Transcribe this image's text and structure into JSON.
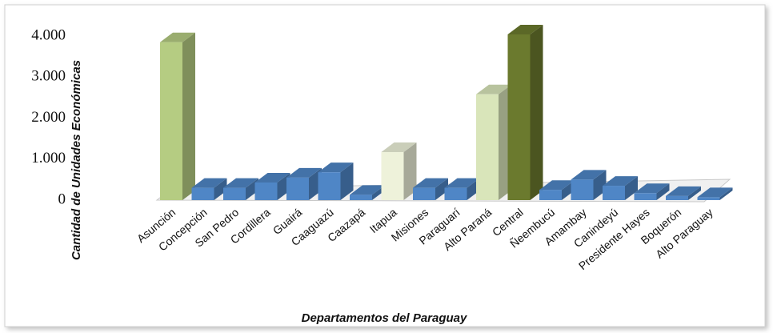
{
  "chart_data": {
    "type": "bar3d",
    "x_label": "Departamentos del Paraguay",
    "y_label": "Cantidad de Unidades Económicas",
    "categories": [
      "Asunción",
      "Concepción",
      "San Pedro",
      "Cordillera",
      "Guairá",
      "Caaguazú",
      "Caazapá",
      "Itapua",
      "Misiones",
      "Paraguarí",
      "Alto Paraná",
      "Central",
      "Ñeembucú",
      "Amambay",
      "Canindeyú",
      "Presidente Hayes",
      "Boquerón",
      "Alto Paraguay"
    ],
    "values": [
      3850,
      300,
      300,
      430,
      550,
      680,
      130,
      1170,
      300,
      300,
      2580,
      4040,
      250,
      500,
      350,
      170,
      100,
      70
    ],
    "colors": [
      "#b5cc82",
      "#4f86c6",
      "#4f86c6",
      "#4f86c6",
      "#4f86c6",
      "#4f86c6",
      "#4f86c6",
      "#eef2da",
      "#4f86c6",
      "#4f86c6",
      "#d9e5ba",
      "#6b7a2e",
      "#4f86c6",
      "#4f86c6",
      "#4f86c6",
      "#4f86c6",
      "#4f86c6",
      "#4f86c6"
    ],
    "ylim": [
      0,
      4000
    ],
    "yticks": [
      0,
      {
        "value": 1000,
        "label": "1.000"
      },
      {
        "value": 2000,
        "label": "2.000"
      },
      {
        "value": 3000,
        "label": "3.000"
      },
      {
        "value": 4000,
        "label": "4.000"
      }
    ],
    "grid": false
  }
}
